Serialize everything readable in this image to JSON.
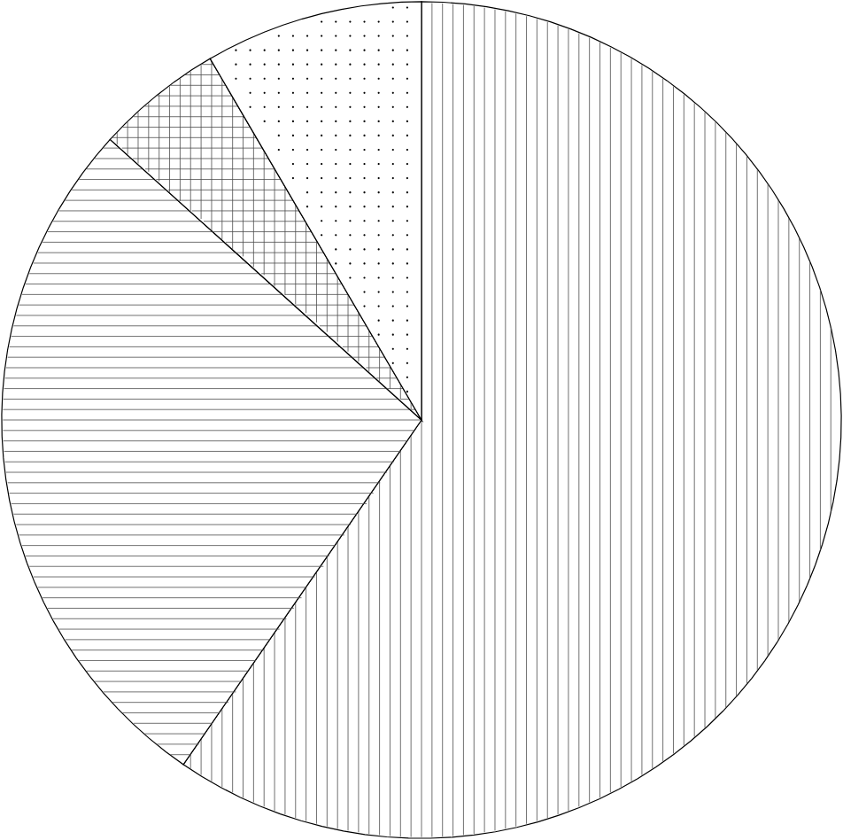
{
  "chart_data": {
    "type": "pie",
    "categories": [
      null,
      null,
      null,
      null
    ],
    "values": [
      59.6,
      27.1,
      4.9,
      8.4
    ],
    "colors": [
      "#ffffff",
      "#ffffff",
      "#ffffff",
      "#ffffff"
    ]
  }
}
